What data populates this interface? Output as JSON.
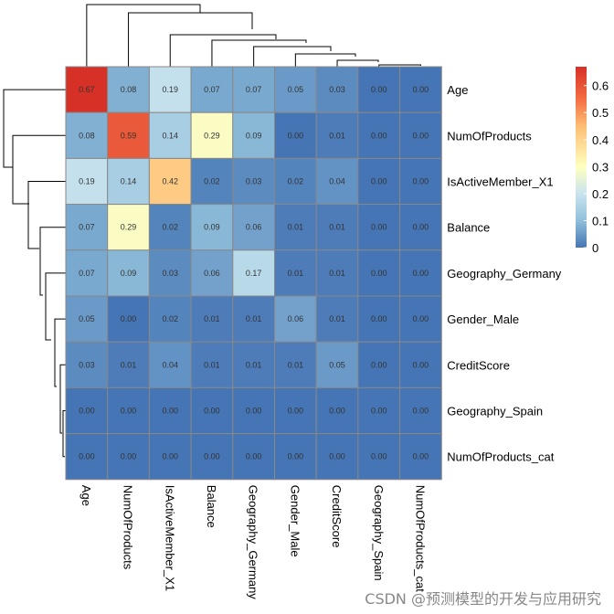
{
  "chart_data": {
    "type": "heatmap",
    "title": "",
    "rows": [
      "Age",
      "NumOfProducts",
      "IsActiveMember_X1",
      "Balance",
      "Geography_Germany",
      "Gender_Male",
      "CreditScore",
      "Geography_Spain",
      "NumOfProducts_cat"
    ],
    "columns": [
      "Age",
      "NumOfProducts",
      "IsActiveMember_X1",
      "Balance",
      "Geography_Germany",
      "Gender_Male",
      "CreditScore",
      "Geography_Spain",
      "NumOfProducts_cat"
    ],
    "values": [
      [
        0.67,
        0.08,
        0.19,
        0.07,
        0.07,
        0.05,
        0.03,
        0.0,
        0.0
      ],
      [
        0.08,
        0.59,
        0.14,
        0.29,
        0.09,
        0.0,
        0.01,
        0.0,
        0.0
      ],
      [
        0.19,
        0.14,
        0.42,
        0.02,
        0.03,
        0.02,
        0.04,
        0.0,
        0.0
      ],
      [
        0.07,
        0.29,
        0.02,
        0.09,
        0.06,
        0.01,
        0.01,
        0.0,
        0.0
      ],
      [
        0.07,
        0.09,
        0.03,
        0.06,
        0.17,
        0.01,
        0.01,
        0.0,
        0.0
      ],
      [
        0.05,
        0.0,
        0.02,
        0.01,
        0.01,
        0.06,
        0.01,
        0.0,
        0.0
      ],
      [
        0.03,
        0.01,
        0.04,
        0.01,
        0.01,
        0.01,
        0.05,
        0.0,
        0.0
      ],
      [
        0.0,
        0.0,
        0.0,
        0.0,
        0.0,
        0.0,
        0.0,
        0.0,
        0.0
      ],
      [
        0.0,
        0.0,
        0.0,
        0.0,
        0.0,
        0.0,
        0.0,
        0.0,
        0.0
      ]
    ],
    "cell_labels": [
      [
        "0.67",
        "0.08",
        "0.19",
        "0.07",
        "0.07",
        "0.05",
        "0.03",
        "0.00",
        "0.00"
      ],
      [
        "0.08",
        "0.59",
        "0.14",
        "0.29",
        "0.09",
        "0.00",
        "0.01",
        "0.00",
        "0.00"
      ],
      [
        "0.19",
        "0.14",
        "0.42",
        "0.02",
        "0.03",
        "0.02",
        "0.04",
        "0.00",
        "0.00"
      ],
      [
        "0.07",
        "0.29",
        "0.02",
        "0.09",
        "0.06",
        "0.01",
        "0.01",
        "0.00",
        "0.00"
      ],
      [
        "0.07",
        "0.09",
        "0.03",
        "0.06",
        "0.17",
        "0.01",
        "0.01",
        "0.00",
        "0.00"
      ],
      [
        "0.05",
        "0.00",
        "0.02",
        "0.01",
        "0.01",
        "0.06",
        "0.01",
        "0.00",
        "0.00"
      ],
      [
        "0.03",
        "0.01",
        "0.04",
        "0.01",
        "0.01",
        "0.01",
        "0.05",
        "0.00",
        "0.00"
      ],
      [
        "0.00",
        "0.00",
        "0.00",
        "0.00",
        "0.00",
        "0.00",
        "0.00",
        "0.00",
        "0.00"
      ],
      [
        "0.00",
        "0.00",
        "0.00",
        "0.00",
        "0.00",
        "0.00",
        "0.00",
        "0.00",
        "0.00"
      ]
    ],
    "color_scale": {
      "min": 0,
      "max": 0.67,
      "stops": [
        {
          "value": 0.0,
          "color": "#4575b4"
        },
        {
          "value": 0.1,
          "color": "#91bfdb"
        },
        {
          "value": 0.2,
          "color": "#c9e4ee"
        },
        {
          "value": 0.3,
          "color": "#ffffbf"
        },
        {
          "value": 0.45,
          "color": "#fdbe74"
        },
        {
          "value": 0.55,
          "color": "#f46d43"
        },
        {
          "value": 0.67,
          "color": "#d73027"
        }
      ]
    },
    "legend": {
      "placement": "top-right",
      "ticks": [
        "0",
        "0.1",
        "0.2",
        "0.3",
        "0.4",
        "0.5",
        "0.6"
      ],
      "tick_values": [
        0,
        0.1,
        0.2,
        0.3,
        0.4,
        0.5,
        0.6
      ]
    },
    "dendrograms": [
      "rows",
      "columns"
    ],
    "cell_border_color": "#888888"
  },
  "watermark": "CSDN @预测模型的开发与应用研究"
}
